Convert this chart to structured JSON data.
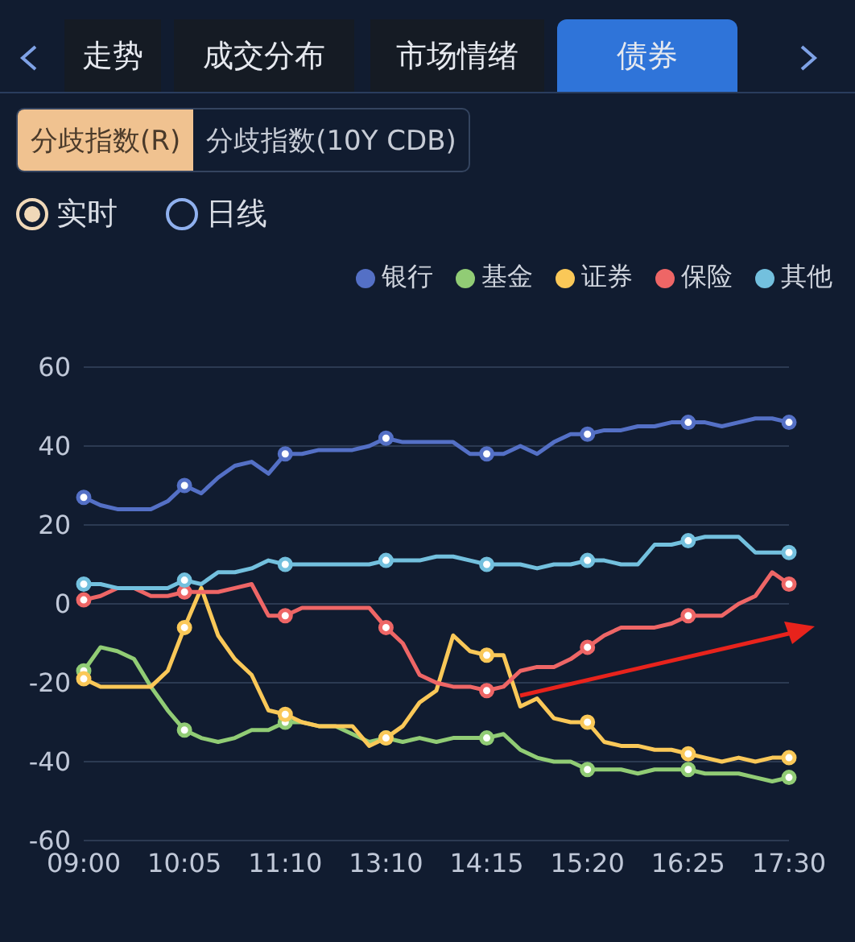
{
  "chart_data": {
    "type": "line",
    "annotations": [
      "走势",
      "成交分布",
      "市场情绪",
      "债券",
      "分歧指数(R)",
      "分歧指数(10Y CDB)",
      "实时",
      "日线"
    ],
    "categories": [
      "09:00",
      null,
      null,
      null,
      null,
      null,
      "10:05",
      null,
      null,
      null,
      null,
      null,
      "11:10",
      null,
      null,
      null,
      null,
      null,
      "13:10",
      null,
      null,
      null,
      null,
      null,
      "14:15",
      null,
      null,
      null,
      null,
      null,
      "15:20",
      null,
      null,
      null,
      null,
      null,
      "16:25",
      null,
      null,
      null,
      null,
      null,
      "17:30"
    ],
    "series": [
      {
        "name": "银行",
        "color": "#5470c6",
        "values": [
          27,
          25,
          24,
          24,
          24,
          26,
          30,
          28,
          32,
          35,
          36,
          33,
          38,
          38,
          39,
          39,
          39,
          40,
          42,
          41,
          41,
          41,
          41,
          38,
          38,
          38,
          40,
          38,
          41,
          43,
          43,
          44,
          44,
          45,
          45,
          46,
          46,
          46,
          45,
          46,
          47,
          47,
          46
        ]
      },
      {
        "name": "基金",
        "color": "#91cc75",
        "values": [
          -17,
          -11,
          -12,
          -14,
          -21,
          -27,
          -32,
          -34,
          -35,
          -34,
          -32,
          -32,
          -30,
          -30,
          -31,
          -31,
          -33,
          -35,
          -34,
          -35,
          -34,
          -35,
          -34,
          -34,
          -34,
          -33,
          -37,
          -39,
          -40,
          -40,
          -42,
          -42,
          -42,
          -43,
          -42,
          -42,
          -42,
          -43,
          -43,
          -43,
          -44,
          -45,
          -44
        ]
      },
      {
        "name": "证券",
        "color": "#fac858",
        "values": [
          -19,
          -21,
          -21,
          -21,
          -21,
          -17,
          -6,
          4,
          -8,
          -14,
          -18,
          -27,
          -28,
          -30,
          -31,
          -31,
          -31,
          -36,
          -34,
          -31,
          -25,
          -22,
          -8,
          -12,
          -13,
          -13,
          -26,
          -24,
          -29,
          -30,
          -30,
          -35,
          -36,
          -36,
          -37,
          -37,
          -38,
          -39,
          -40,
          -39,
          -40,
          -39,
          -39
        ]
      },
      {
        "name": "保险",
        "color": "#ee6666",
        "values": [
          1,
          2,
          4,
          4,
          2,
          2,
          3,
          3,
          3,
          4,
          5,
          -3,
          -3,
          -1,
          -1,
          -1,
          -1,
          -1,
          -6,
          -10,
          -18,
          -20,
          -21,
          -21,
          -22,
          -21,
          -17,
          -16,
          -16,
          -14,
          -11,
          -8,
          -6,
          -6,
          -6,
          -5,
          -3,
          -3,
          -3,
          0,
          2,
          8,
          5
        ]
      },
      {
        "name": "其他",
        "color": "#73c0de",
        "values": [
          5,
          5,
          4,
          4,
          4,
          4,
          6,
          5,
          8,
          8,
          9,
          11,
          10,
          10,
          10,
          10,
          10,
          10,
          11,
          11,
          11,
          12,
          12,
          11,
          10,
          10,
          10,
          9,
          10,
          10,
          11,
          11,
          10,
          10,
          15,
          15,
          16,
          17,
          17,
          17,
          13,
          13,
          13
        ]
      }
    ],
    "ylim": [
      -60,
      60
    ],
    "yticks": [
      -60,
      -40,
      -20,
      0,
      20,
      40,
      60
    ],
    "grid": "y",
    "legend": "top",
    "line_style": "solid"
  }
}
